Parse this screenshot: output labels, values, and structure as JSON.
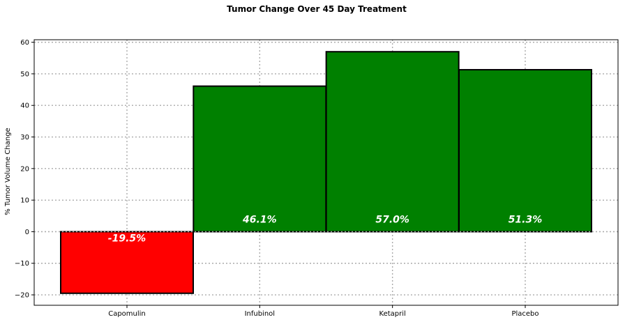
{
  "chart_data": {
    "type": "bar",
    "title": "Tumor Change Over 45 Day Treatment",
    "xlabel": "",
    "ylabel": "% Tumor Volume Change",
    "categories": [
      "Capomulin",
      "Infubinol",
      "Ketapril",
      "Placebo"
    ],
    "values": [
      -19.5,
      46.1,
      57.0,
      51.3
    ],
    "data_labels": [
      "-19.5%",
      "46.1%",
      "57.0%",
      "51.3%"
    ],
    "bar_colors": [
      "#ff0000",
      "#008000",
      "#008000",
      "#008000"
    ],
    "edge_color": "#000000",
    "ylim": [
      -23.3,
      60.8
    ],
    "yticks": [
      -20,
      -10,
      0,
      10,
      20,
      30,
      40,
      50,
      60
    ],
    "grid": true
  }
}
